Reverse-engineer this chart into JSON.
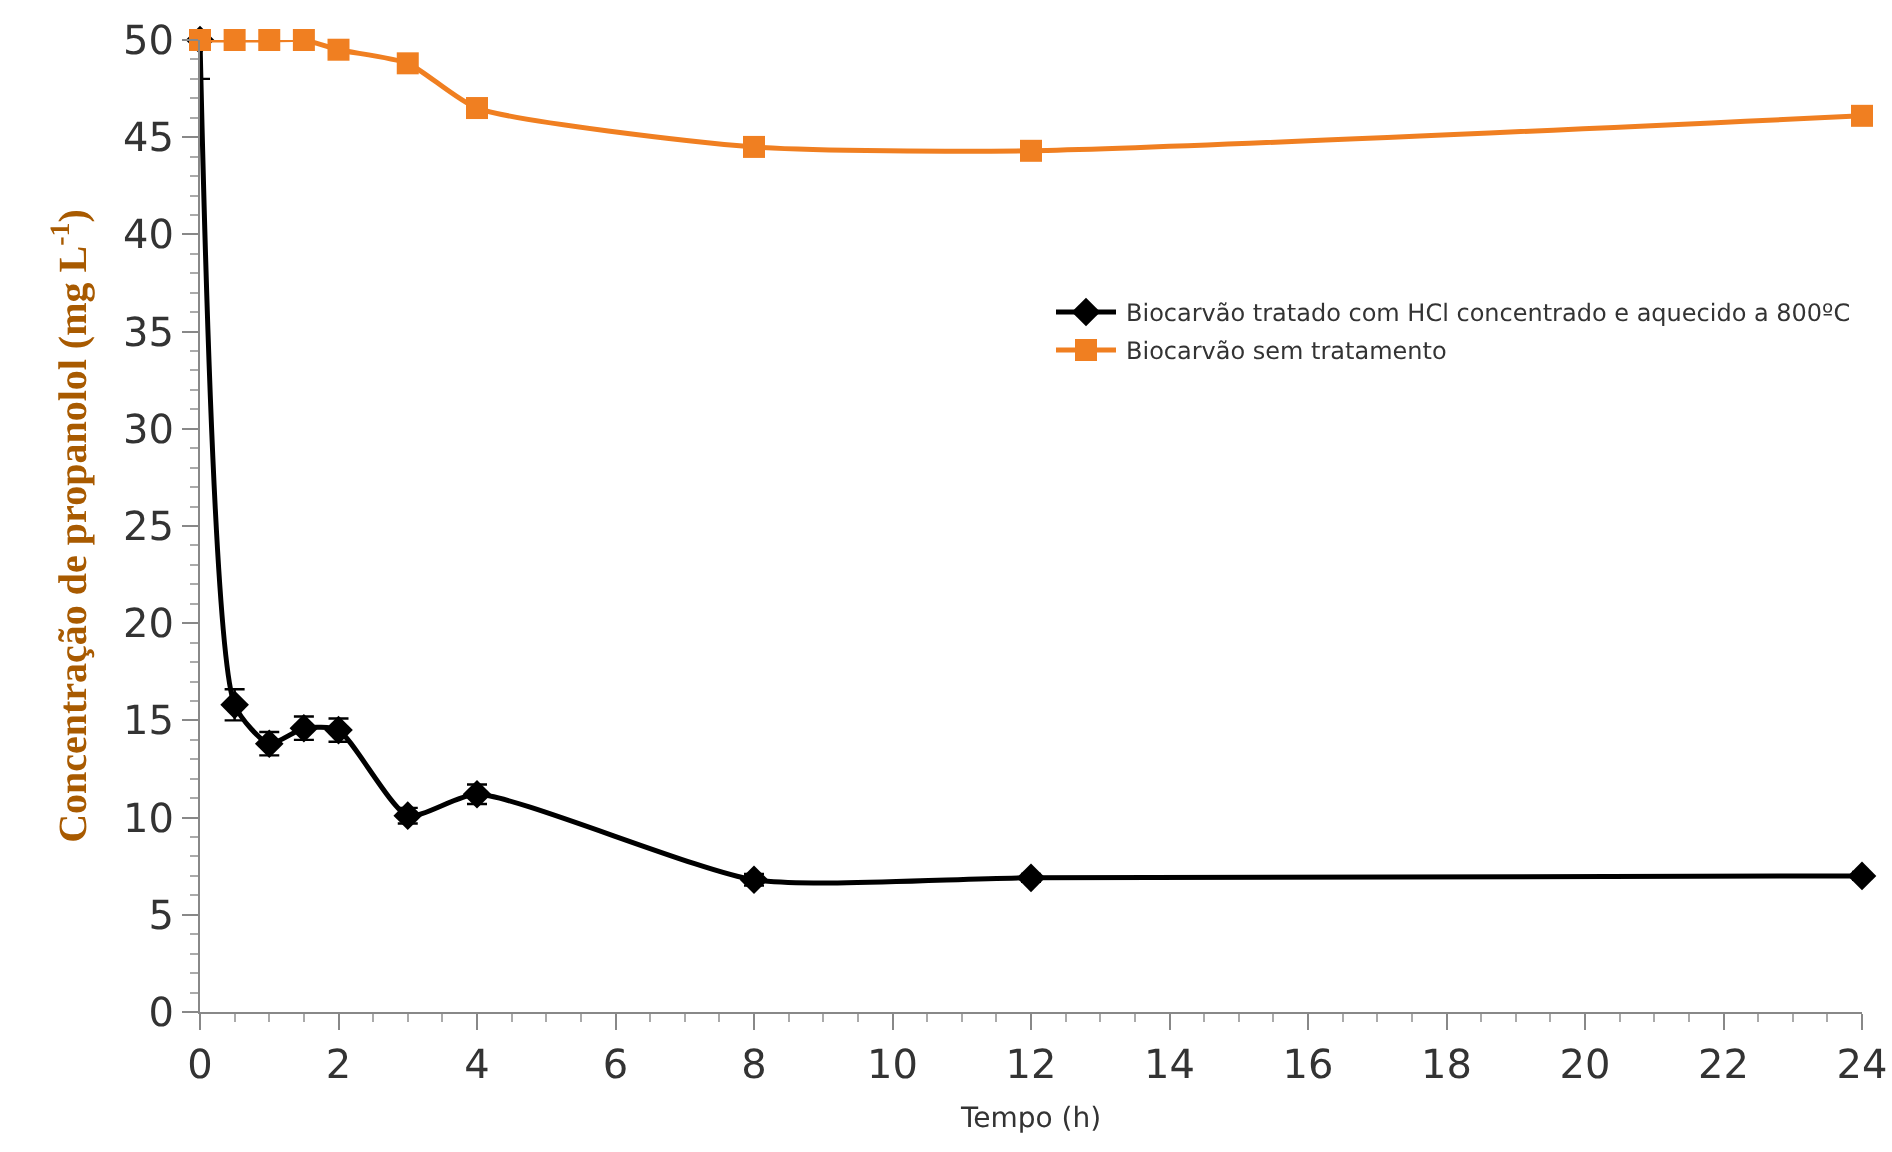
{
  "chart_data": {
    "type": "line",
    "xlabel": "Tempo (h)",
    "ylabel": "Concentração de propanolol (mg L$^{-1}$)",
    "x": [
      0,
      0.5,
      1,
      1.5,
      2,
      3,
      4,
      8,
      12,
      24
    ],
    "series": [
      {
        "name": "Biocarvão tratado com HCl concentrado e aquecido a 800ºC",
        "color": "#000000",
        "marker": "diamond",
        "values": [
          50,
          15.8,
          13.8,
          14.6,
          14.5,
          10.1,
          11.2,
          6.8,
          6.9,
          7.0
        ],
        "errors": [
          2,
          0.8,
          0.6,
          0.6,
          0.6,
          0.4,
          0.5,
          0.3,
          0.2,
          0.2
        ]
      },
      {
        "name": "Biocarvão sem tratamento",
        "color": "#f07f21",
        "marker": "square",
        "values": [
          50,
          50,
          50,
          50,
          49.5,
          48.8,
          46.5,
          44.5,
          44.3,
          46.1
        ]
      }
    ],
    "xlim": [
      0,
      24
    ],
    "xticks": [
      0,
      2,
      4,
      6,
      8,
      10,
      12,
      14,
      16,
      18,
      20,
      22,
      24
    ],
    "ylim": [
      0,
      50
    ],
    "yticks": [
      0,
      5,
      10,
      15,
      20,
      25,
      30,
      35,
      40,
      45,
      50
    ],
    "grid": false,
    "legend": "right"
  }
}
